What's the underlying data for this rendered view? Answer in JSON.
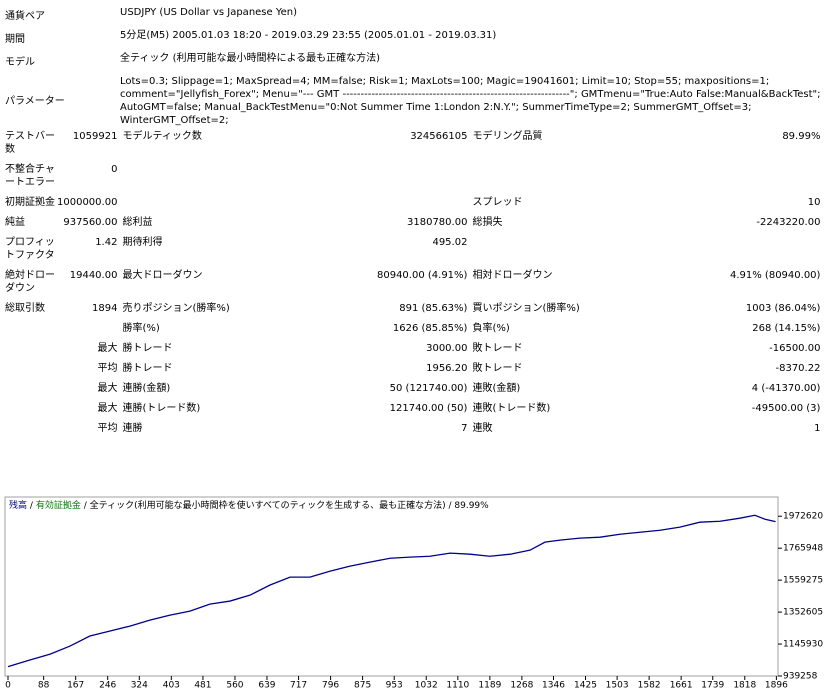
{
  "info": [
    {
      "label": "通貨ペア",
      "lines": [
        "USDJPY (US Dollar vs Japanese Yen)"
      ]
    },
    {
      "label": "期間",
      "lines": [
        "5分足(M5) 2005.01.03 18:20 - 2019.03.29 23:55 (2005.01.01 - 2019.03.31)"
      ]
    },
    {
      "label": "モデル",
      "lines": [
        "全ティック (利用可能な最小時間枠による最も正確な方法)"
      ]
    },
    {
      "label": "パラメーター",
      "lines": [
        "Lots=0.3; Slippage=1; MaxSpread=4; MM=false; Risk=1; MaxLots=100; Magic=19041601; Limit=10; Stop=55; maxpositions=1;",
        "comment=\"Jellyfish_Forex\"; Menu=\"--- GMT ---------------------------------------------------------------\"; GMTmenu=\"True:Auto False:Manual&BackTest\";",
        "AutoGMT=false; Manual_BackTestMenu=\"0:Not Summer Time 1:London 2:N.Y.\"; SummerTimeType=2; SummerGMT_Offset=3;",
        "WinterGMT_Offset=2;"
      ]
    }
  ],
  "stats": [
    [
      "テストバー数",
      "1059921",
      "モデルティック数",
      "324566105",
      "モデリング品質",
      "89.99%"
    ],
    [
      "不整合チャートエラー",
      "0",
      null,
      null,
      null,
      null
    ],
    [
      "初期証拠金",
      "1000000.00",
      null,
      null,
      "スプレッド",
      "10"
    ],
    [
      "純益",
      "937560.00",
      "総利益",
      "3180780.00",
      "総損失",
      "-2243220.00"
    ],
    [
      "プロフィットファクタ",
      "1.42",
      "期待利得",
      "495.02",
      null,
      null
    ],
    [
      "絶対ドローダウン",
      "19440.00",
      "最大ドローダウン",
      "80940.00 (4.91%)",
      "相対ドローダウン",
      "4.91% (80940.00)"
    ],
    [
      "総取引数",
      "1894",
      "売りポジション(勝率%)",
      "891 (85.63%)",
      "買いポジション(勝率%)",
      "1003 (86.04%)"
    ],
    [
      null,
      null,
      "勝率(%)",
      "1626 (85.85%)",
      "負率(%)",
      "268 (14.15%)"
    ],
    [
      null,
      "最大",
      "勝トレード",
      "3000.00",
      "敗トレード",
      "-16500.00"
    ],
    [
      null,
      "平均",
      "勝トレード",
      "1956.20",
      "敗トレード",
      "-8370.22"
    ],
    [
      null,
      "最大",
      "連勝(金額)",
      "50 (121740.00)",
      "連敗(金額)",
      "4 (-41370.00)"
    ],
    [
      null,
      "最大",
      "連勝(トレード数)",
      "121740.00 (50)",
      "連敗(トレード数)",
      "-49500.00 (3)"
    ],
    [
      null,
      "平均",
      "連勝",
      "7",
      "連敗",
      "1"
    ]
  ],
  "chart_data": {
    "type": "line",
    "header": {
      "balance_label": "残高",
      "balance_color": "#00008b",
      "equity_label": "有効証拠金",
      "equity_color": "#008000",
      "separator": "/",
      "model": "全ティック(利用可能な最小時間枠を使いすべてのティックを生成する、最も正確な方法)",
      "quality": "89.99%"
    },
    "x": [
      0,
      54,
      104,
      153,
      202,
      252,
      301,
      350,
      400,
      449,
      498,
      548,
      597,
      646,
      696,
      745,
      794,
      844,
      893,
      943,
      992,
      1041,
      1091,
      1140,
      1189,
      1239,
      1288,
      1325,
      1362,
      1411,
      1461,
      1510,
      1559,
      1609,
      1658,
      1707,
      1757,
      1806,
      1843,
      1868,
      1894
    ],
    "series": [
      {
        "name": "残高",
        "color": "#00008b",
        "values": [
          1000000,
          1043000,
          1081000,
          1133000,
          1198000,
          1230000,
          1262000,
          1301000,
          1333000,
          1359000,
          1404000,
          1424000,
          1462000,
          1527000,
          1579000,
          1579000,
          1617000,
          1650000,
          1676000,
          1701000,
          1708000,
          1714000,
          1734000,
          1727000,
          1714000,
          1727000,
          1753000,
          1805000,
          1818000,
          1831000,
          1837000,
          1856000,
          1869000,
          1882000,
          1902000,
          1934000,
          1940000,
          1960000,
          1979000,
          1953000,
          1937560
        ]
      }
    ],
    "xlim": [
      0,
      1900
    ],
    "ylim": [
      939258,
      2000000
    ],
    "xticks": [
      0,
      88,
      167,
      246,
      324,
      403,
      481,
      560,
      639,
      717,
      796,
      875,
      953,
      1032,
      1110,
      1189,
      1268,
      1346,
      1425,
      1503,
      1582,
      1661,
      1739,
      1818,
      1896
    ],
    "yticks": [
      939258,
      1145930,
      1352605,
      1559275,
      1765948,
      1972620
    ],
    "grid": false
  }
}
